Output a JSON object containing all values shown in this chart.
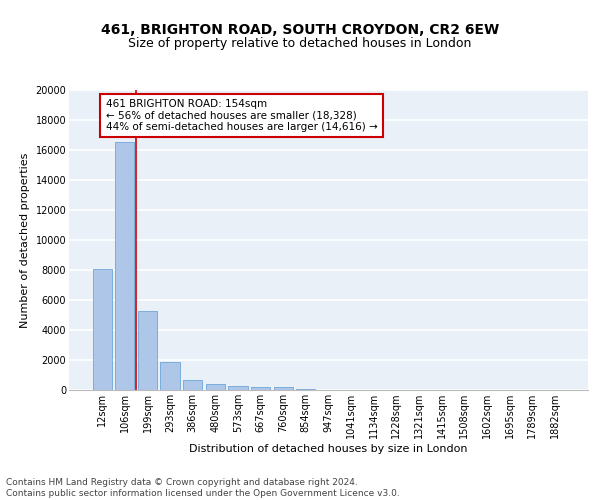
{
  "title_line1": "461, BRIGHTON ROAD, SOUTH CROYDON, CR2 6EW",
  "title_line2": "Size of property relative to detached houses in London",
  "xlabel": "Distribution of detached houses by size in London",
  "ylabel": "Number of detached properties",
  "categories": [
    "12sqm",
    "106sqm",
    "199sqm",
    "293sqm",
    "386sqm",
    "480sqm",
    "573sqm",
    "667sqm",
    "760sqm",
    "854sqm",
    "947sqm",
    "1041sqm",
    "1134sqm",
    "1228sqm",
    "1321sqm",
    "1415sqm",
    "1508sqm",
    "1602sqm",
    "1695sqm",
    "1789sqm",
    "1882sqm"
  ],
  "values": [
    8100,
    16500,
    5300,
    1850,
    700,
    370,
    270,
    210,
    170,
    100,
    0,
    0,
    0,
    0,
    0,
    0,
    0,
    0,
    0,
    0,
    0
  ],
  "bar_color": "#aec6e8",
  "bar_edge_color": "#5a9bd5",
  "annotation_text": "461 BRIGHTON ROAD: 154sqm\n← 56% of detached houses are smaller (18,328)\n44% of semi-detached houses are larger (14,616) →",
  "annotation_box_color": "#ffffff",
  "annotation_box_edge_color": "#cc0000",
  "vline_color": "#cc0000",
  "ylim": [
    0,
    20000
  ],
  "yticks": [
    0,
    2000,
    4000,
    6000,
    8000,
    10000,
    12000,
    14000,
    16000,
    18000,
    20000
  ],
  "background_color": "#eaf0f8",
  "grid_color": "#ffffff",
  "footer_text": "Contains HM Land Registry data © Crown copyright and database right 2024.\nContains public sector information licensed under the Open Government Licence v3.0.",
  "title_fontsize": 10,
  "subtitle_fontsize": 9,
  "axis_label_fontsize": 8,
  "tick_fontsize": 7,
  "annotation_fontsize": 7.5,
  "footer_fontsize": 6.5
}
